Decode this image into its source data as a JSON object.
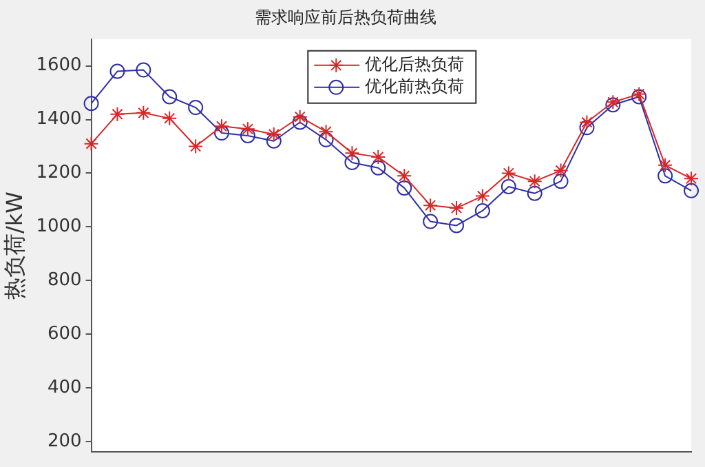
{
  "chart_data": {
    "type": "line",
    "title": "需求响应前后热负荷曲线",
    "ylabel": "热负荷/kW",
    "categories": [
      null,
      null,
      null,
      null,
      null,
      null,
      null,
      null,
      null,
      null,
      null,
      null,
      null,
      null,
      null,
      null,
      null,
      null,
      null,
      null,
      null,
      null,
      null,
      null
    ],
    "series": [
      {
        "name": "优化后热负荷",
        "color": "#d62728",
        "marker": "cross",
        "values": [
          1310,
          1420,
          1425,
          1405,
          1300,
          1375,
          1365,
          1345,
          1410,
          1355,
          1275,
          1260,
          1190,
          1080,
          1070,
          1115,
          1200,
          1170,
          1210,
          1390,
          1465,
          1495,
          1230,
          1180
        ]
      },
      {
        "name": "优化前热负荷",
        "color": "#2e2ea8",
        "marker": "circle",
        "values": [
          1460,
          1580,
          1585,
          1485,
          1445,
          1350,
          1340,
          1320,
          1390,
          1325,
          1240,
          1220,
          1145,
          1020,
          1005,
          1060,
          1150,
          1125,
          1170,
          1370,
          1455,
          1485,
          1190,
          1135
        ]
      }
    ],
    "ylim": [
      160,
      1700
    ],
    "yticks": [
      200,
      400,
      600,
      800,
      1000,
      1200,
      1400,
      1600
    ],
    "tick_labels": "y",
    "grid": false,
    "legend": "top",
    "line_style": "solid"
  }
}
